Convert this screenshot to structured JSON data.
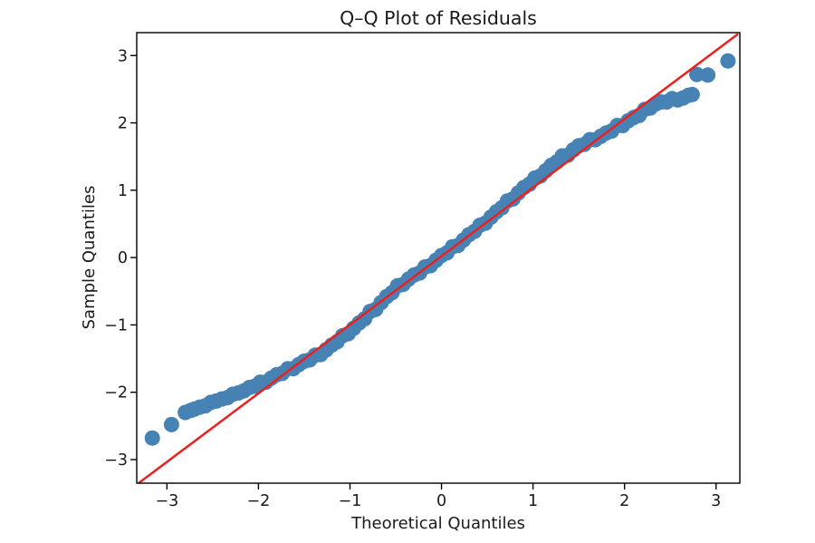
{
  "chart_data": {
    "type": "scatter",
    "title": "Q–Q Plot of Residuals",
    "xlabel": "Theoretical Quantiles",
    "ylabel": "Sample Quantiles",
    "xlim": [
      -3.33,
      3.26
    ],
    "ylim": [
      -3.35,
      3.34
    ],
    "x_ticks": [
      -3,
      -2,
      -1,
      0,
      1,
      2,
      3
    ],
    "y_ticks": [
      -3,
      -2,
      -1,
      0,
      1,
      2,
      3
    ],
    "grid": false,
    "legend": false,
    "background": "#ffffff",
    "frame_color": "#000000",
    "series": [
      {
        "name": "residuals",
        "type": "scatter",
        "color": "#4682b4",
        "marker_radius_px": 8.5,
        "points": [
          [
            -3.16,
            -2.68
          ],
          [
            -2.95,
            -2.48
          ],
          [
            -2.8,
            -2.3
          ],
          [
            -2.74,
            -2.27
          ],
          [
            -2.7,
            -2.25
          ],
          [
            -2.64,
            -2.22
          ],
          [
            -2.58,
            -2.2
          ],
          [
            -2.52,
            -2.15
          ],
          [
            -2.46,
            -2.13
          ],
          [
            -2.4,
            -2.1
          ],
          [
            -2.34,
            -2.08
          ],
          [
            -2.28,
            -2.03
          ],
          [
            -2.22,
            -2.01
          ],
          [
            -2.16,
            -1.98
          ],
          [
            -2.1,
            -1.93
          ],
          [
            -2.04,
            -1.91
          ],
          [
            -1.98,
            -1.85
          ],
          [
            -1.92,
            -1.85
          ],
          [
            -1.86,
            -1.79
          ],
          [
            -1.8,
            -1.74
          ],
          [
            -1.74,
            -1.72
          ],
          [
            -1.68,
            -1.65
          ],
          [
            -1.62,
            -1.65
          ],
          [
            -1.56,
            -1.59
          ],
          [
            -1.5,
            -1.54
          ],
          [
            -1.44,
            -1.52
          ],
          [
            -1.38,
            -1.45
          ],
          [
            -1.32,
            -1.44
          ],
          [
            -1.26,
            -1.37
          ],
          [
            -1.2,
            -1.3
          ],
          [
            -1.14,
            -1.25
          ],
          [
            -1.08,
            -1.16
          ],
          [
            -1.02,
            -1.13
          ],
          [
            -0.96,
            -1.05
          ],
          [
            -0.9,
            -0.97
          ],
          [
            -0.84,
            -0.91
          ],
          [
            -0.78,
            -0.8
          ],
          [
            -0.72,
            -0.77
          ],
          [
            -0.66,
            -0.67
          ],
          [
            -0.6,
            -0.58
          ],
          [
            -0.54,
            -0.52
          ],
          [
            -0.48,
            -0.42
          ],
          [
            -0.42,
            -0.4
          ],
          [
            -0.36,
            -0.32
          ],
          [
            -0.3,
            -0.26
          ],
          [
            -0.24,
            -0.23
          ],
          [
            -0.18,
            -0.14
          ],
          [
            -0.12,
            -0.12
          ],
          [
            -0.06,
            -0.04
          ],
          [
            0.0,
            0.03
          ],
          [
            0.06,
            0.07
          ],
          [
            0.12,
            0.16
          ],
          [
            0.18,
            0.18
          ],
          [
            0.24,
            0.26
          ],
          [
            0.3,
            0.34
          ],
          [
            0.36,
            0.39
          ],
          [
            0.42,
            0.48
          ],
          [
            0.48,
            0.51
          ],
          [
            0.54,
            0.6
          ],
          [
            0.6,
            0.68
          ],
          [
            0.66,
            0.74
          ],
          [
            0.72,
            0.84
          ],
          [
            0.78,
            0.87
          ],
          [
            0.84,
            0.96
          ],
          [
            0.9,
            1.04
          ],
          [
            0.96,
            1.09
          ],
          [
            1.02,
            1.18
          ],
          [
            1.08,
            1.21
          ],
          [
            1.14,
            1.29
          ],
          [
            1.2,
            1.37
          ],
          [
            1.26,
            1.42
          ],
          [
            1.32,
            1.51
          ],
          [
            1.38,
            1.52
          ],
          [
            1.44,
            1.6
          ],
          [
            1.5,
            1.66
          ],
          [
            1.56,
            1.68
          ],
          [
            1.62,
            1.75
          ],
          [
            1.68,
            1.75
          ],
          [
            1.74,
            1.8
          ],
          [
            1.8,
            1.85
          ],
          [
            1.86,
            1.88
          ],
          [
            1.92,
            1.96
          ],
          [
            1.98,
            1.96
          ],
          [
            2.04,
            2.03
          ],
          [
            2.1,
            2.08
          ],
          [
            2.16,
            2.11
          ],
          [
            2.22,
            2.2
          ],
          [
            2.28,
            2.22
          ],
          [
            2.34,
            2.28
          ],
          [
            2.4,
            2.31
          ],
          [
            2.46,
            2.31
          ],
          [
            2.52,
            2.36
          ],
          [
            2.58,
            2.34
          ],
          [
            2.64,
            2.37
          ],
          [
            2.7,
            2.41
          ],
          [
            2.74,
            2.42
          ],
          [
            2.79,
            2.72
          ],
          [
            2.91,
            2.71
          ],
          [
            3.13,
            2.92
          ]
        ]
      },
      {
        "name": "reference-line",
        "type": "line",
        "color": "#eb2120",
        "stroke_width_px": 2.5,
        "points": [
          [
            -3.31,
            -3.35
          ],
          [
            3.24,
            3.32
          ]
        ]
      }
    ]
  }
}
